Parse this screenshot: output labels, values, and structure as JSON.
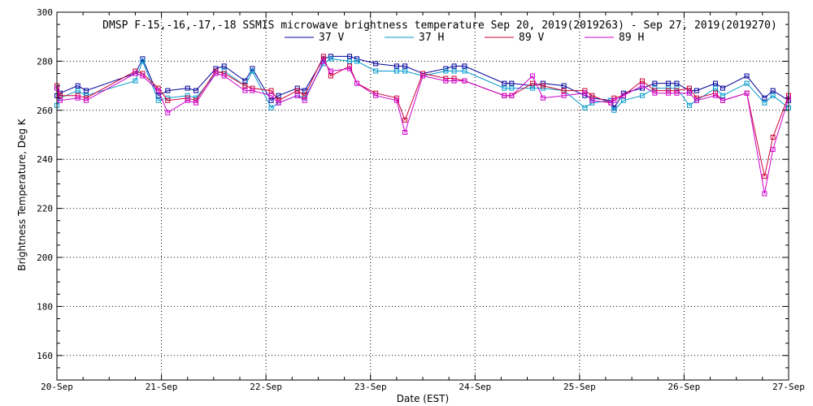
{
  "chart_data": {
    "type": "line",
    "title": "DMSP F-15,-16,-17,-18 SSMIS microwave brightness temperature Sep 20, 2019(2019263) - Sep 27, 2019(2019270)",
    "xlabel": "Date (EST)",
    "ylabel": "Brightness Temperature, Deg K",
    "xlim": [
      0,
      7
    ],
    "ylim": [
      150,
      300
    ],
    "x_tick_values": [
      0,
      1,
      2,
      3,
      4,
      5,
      6,
      7
    ],
    "x_tick_labels": [
      "20-Sep",
      "21-Sep",
      "22-Sep",
      "23-Sep",
      "24-Sep",
      "25-Sep",
      "26-Sep",
      "27-Sep"
    ],
    "y_ticks": [
      160,
      180,
      200,
      220,
      240,
      260,
      280,
      300
    ],
    "grid": true,
    "legend_position": "top-center",
    "series": [
      {
        "name": "37 V",
        "color": "#000099",
        "points": [
          [
            0.0,
            266
          ],
          [
            0.03,
            267
          ],
          [
            0.2,
            270
          ],
          [
            0.28,
            268
          ],
          [
            0.75,
            275
          ],
          [
            0.82,
            281
          ],
          [
            0.97,
            266
          ],
          [
            1.06,
            268
          ],
          [
            1.25,
            269
          ],
          [
            1.33,
            268
          ],
          [
            1.52,
            277
          ],
          [
            1.6,
            278
          ],
          [
            1.8,
            272
          ],
          [
            1.87,
            277
          ],
          [
            2.05,
            264
          ],
          [
            2.12,
            266
          ],
          [
            2.3,
            269
          ],
          [
            2.37,
            268
          ],
          [
            2.55,
            281
          ],
          [
            2.62,
            282
          ],
          [
            2.8,
            282
          ],
          [
            2.87,
            281
          ],
          [
            3.05,
            279
          ],
          [
            3.25,
            278
          ],
          [
            3.33,
            278
          ],
          [
            3.5,
            275
          ],
          [
            3.72,
            277
          ],
          [
            3.8,
            278
          ],
          [
            3.9,
            278
          ],
          [
            4.28,
            271
          ],
          [
            4.35,
            271
          ],
          [
            4.55,
            270
          ],
          [
            4.65,
            271
          ],
          [
            4.85,
            270
          ],
          [
            5.05,
            266
          ],
          [
            5.12,
            265
          ],
          [
            5.3,
            264
          ],
          [
            5.33,
            261
          ],
          [
            5.42,
            267
          ],
          [
            5.6,
            269
          ],
          [
            5.72,
            271
          ],
          [
            5.85,
            271
          ],
          [
            5.93,
            271
          ],
          [
            6.05,
            268
          ],
          [
            6.12,
            268
          ],
          [
            6.3,
            271
          ],
          [
            6.37,
            269
          ],
          [
            6.6,
            274
          ],
          [
            6.77,
            265
          ],
          [
            6.85,
            268
          ],
          [
            7.0,
            264
          ]
        ]
      },
      {
        "name": "37 H",
        "color": "#0099cc",
        "points": [
          [
            0.0,
            262
          ],
          [
            0.03,
            265
          ],
          [
            0.2,
            268
          ],
          [
            0.28,
            266
          ],
          [
            0.75,
            272
          ],
          [
            0.82,
            280
          ],
          [
            0.97,
            264
          ],
          [
            1.06,
            265
          ],
          [
            1.25,
            266
          ],
          [
            1.33,
            265
          ],
          [
            1.52,
            275
          ],
          [
            1.6,
            276
          ],
          [
            1.8,
            270
          ],
          [
            1.87,
            276
          ],
          [
            2.05,
            261
          ],
          [
            2.12,
            263
          ],
          [
            2.3,
            266
          ],
          [
            2.37,
            265
          ],
          [
            2.55,
            279
          ],
          [
            2.62,
            281
          ],
          [
            2.8,
            280
          ],
          [
            2.87,
            280
          ],
          [
            3.05,
            276
          ],
          [
            3.25,
            276
          ],
          [
            3.33,
            276
          ],
          [
            3.5,
            274
          ],
          [
            3.72,
            276
          ],
          [
            3.8,
            276
          ],
          [
            3.9,
            276
          ],
          [
            4.28,
            269
          ],
          [
            4.35,
            269
          ],
          [
            4.55,
            269
          ],
          [
            4.65,
            269
          ],
          [
            4.85,
            268
          ],
          [
            5.05,
            261
          ],
          [
            5.12,
            263
          ],
          [
            5.3,
            264
          ],
          [
            5.33,
            260
          ],
          [
            5.42,
            264
          ],
          [
            5.6,
            266
          ],
          [
            5.72,
            269
          ],
          [
            5.85,
            269
          ],
          [
            5.93,
            269
          ],
          [
            6.05,
            262
          ],
          [
            6.12,
            264
          ],
          [
            6.3,
            269
          ],
          [
            6.37,
            266
          ],
          [
            6.6,
            271
          ],
          [
            6.77,
            263
          ],
          [
            6.85,
            266
          ],
          [
            7.0,
            261
          ]
        ]
      },
      {
        "name": "89 V",
        "color": "#cc0033",
        "points": [
          [
            0.0,
            270
          ],
          [
            0.03,
            266
          ],
          [
            0.2,
            266
          ],
          [
            0.28,
            265
          ],
          [
            0.75,
            276
          ],
          [
            0.82,
            275
          ],
          [
            0.97,
            269
          ],
          [
            1.06,
            264
          ],
          [
            1.25,
            265
          ],
          [
            1.33,
            264
          ],
          [
            1.52,
            276
          ],
          [
            1.6,
            275
          ],
          [
            1.8,
            270
          ],
          [
            1.87,
            269
          ],
          [
            2.05,
            268
          ],
          [
            2.12,
            264
          ],
          [
            2.3,
            268
          ],
          [
            2.37,
            266
          ],
          [
            2.55,
            282
          ],
          [
            2.62,
            274
          ],
          [
            2.8,
            278
          ],
          [
            2.87,
            271
          ],
          [
            3.05,
            267
          ],
          [
            3.25,
            265
          ],
          [
            3.33,
            256
          ],
          [
            3.5,
            275
          ],
          [
            3.72,
            273
          ],
          [
            3.8,
            273
          ],
          [
            3.9,
            272
          ],
          [
            4.28,
            266
          ],
          [
            4.35,
            266
          ],
          [
            4.55,
            271
          ],
          [
            4.65,
            270
          ],
          [
            4.85,
            268
          ],
          [
            5.05,
            268
          ],
          [
            5.12,
            266
          ],
          [
            5.3,
            263
          ],
          [
            5.33,
            265
          ],
          [
            5.42,
            266
          ],
          [
            5.6,
            272
          ],
          [
            5.72,
            268
          ],
          [
            5.85,
            268
          ],
          [
            5.93,
            268
          ],
          [
            6.05,
            269
          ],
          [
            6.12,
            265
          ],
          [
            6.3,
            267
          ],
          [
            6.37,
            264
          ],
          [
            6.6,
            267
          ],
          [
            6.77,
            233
          ],
          [
            6.85,
            249
          ],
          [
            7.0,
            266
          ]
        ]
      },
      {
        "name": "89 H",
        "color": "#cc00cc",
        "points": [
          [
            0.0,
            269
          ],
          [
            0.03,
            264
          ],
          [
            0.2,
            265
          ],
          [
            0.28,
            264
          ],
          [
            0.75,
            275
          ],
          [
            0.82,
            274
          ],
          [
            0.97,
            268
          ],
          [
            1.06,
            259
          ],
          [
            1.25,
            264
          ],
          [
            1.33,
            263
          ],
          [
            1.52,
            275
          ],
          [
            1.6,
            274
          ],
          [
            1.8,
            268
          ],
          [
            1.87,
            268
          ],
          [
            2.05,
            266
          ],
          [
            2.12,
            263
          ],
          [
            2.3,
            266
          ],
          [
            2.37,
            264
          ],
          [
            2.55,
            280
          ],
          [
            2.62,
            276
          ],
          [
            2.8,
            277
          ],
          [
            2.87,
            271
          ],
          [
            3.05,
            266
          ],
          [
            3.25,
            264
          ],
          [
            3.33,
            251
          ],
          [
            3.5,
            274
          ],
          [
            3.72,
            272
          ],
          [
            3.8,
            272
          ],
          [
            3.9,
            272
          ],
          [
            4.28,
            266
          ],
          [
            4.35,
            266
          ],
          [
            4.55,
            274
          ],
          [
            4.65,
            265
          ],
          [
            4.85,
            266
          ],
          [
            5.05,
            267
          ],
          [
            5.12,
            264
          ],
          [
            5.3,
            263
          ],
          [
            5.33,
            264
          ],
          [
            5.42,
            266
          ],
          [
            5.6,
            270
          ],
          [
            5.72,
            267
          ],
          [
            5.85,
            267
          ],
          [
            5.93,
            267
          ],
          [
            6.05,
            267
          ],
          [
            6.12,
            264
          ],
          [
            6.3,
            266
          ],
          [
            6.37,
            264
          ],
          [
            6.6,
            267
          ],
          [
            6.77,
            226
          ],
          [
            6.85,
            244
          ],
          [
            7.0,
            265
          ]
        ]
      }
    ]
  }
}
